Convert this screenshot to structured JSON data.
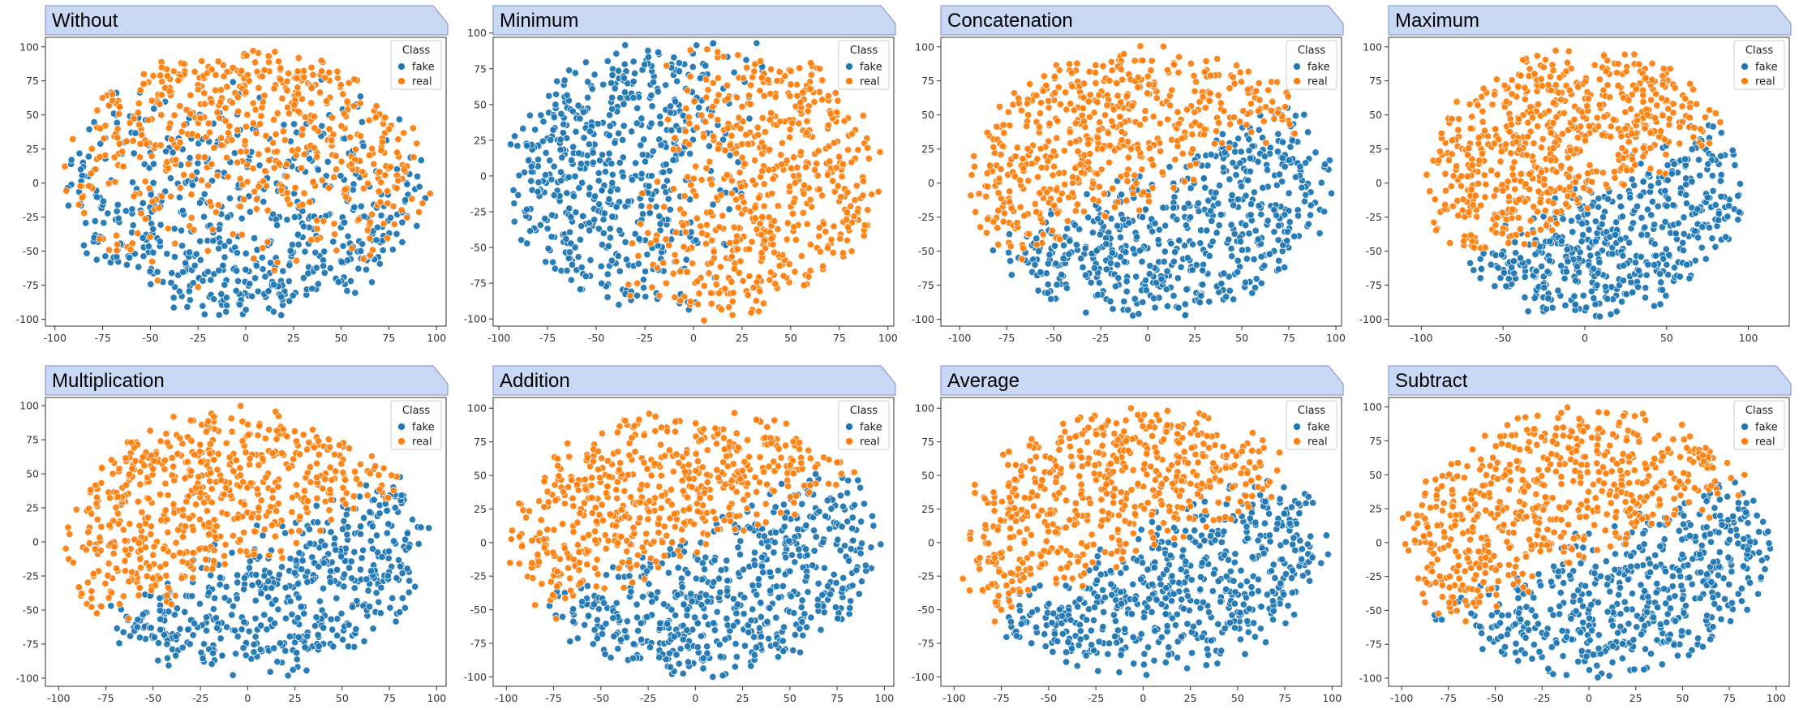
{
  "colors": {
    "fake": "#1f77b4",
    "real": "#ff7f0e",
    "banner": "#c9d9f5",
    "banner_stroke": "#7b8ec0"
  },
  "legend": {
    "title": "Class",
    "entries": [
      "fake",
      "real"
    ]
  },
  "chart_data": [
    {
      "type": "scatter",
      "title": "Without",
      "xlim": [
        -105,
        105
      ],
      "ylim": [
        -105,
        107
      ],
      "xticks": [
        -100,
        -75,
        -50,
        -25,
        0,
        25,
        50,
        75,
        100
      ],
      "yticks": [
        -100,
        -75,
        -50,
        -25,
        0,
        25,
        50,
        75,
        100
      ],
      "legend": "top-right",
      "grid": false,
      "points_per_class": 560,
      "series": [
        {
          "name": "fake",
          "distribution": "mixed throughout, denser in lower half",
          "spread": [
            -95,
            95,
            -88,
            55
          ]
        },
        {
          "name": "real",
          "distribution": "mixed throughout, denser in upper half",
          "spread": [
            -98,
            98,
            -92,
            100
          ]
        }
      ]
    },
    {
      "type": "scatter",
      "title": "Minimum",
      "xlim": [
        -103,
        103
      ],
      "ylim": [
        -105,
        97
      ],
      "xticks": [
        -100,
        -75,
        -50,
        -25,
        0,
        25,
        50,
        75,
        100
      ],
      "yticks": [
        -100,
        -75,
        -50,
        -25,
        0,
        25,
        50,
        75,
        100
      ],
      "legend": "top-right",
      "grid": false,
      "points_per_class": 560,
      "series": [
        {
          "name": "fake",
          "distribution": "left half, overlapping",
          "spread": [
            -92,
            40,
            -92,
            75
          ]
        },
        {
          "name": "real",
          "distribution": "right half, overlapping",
          "spread": [
            -40,
            95,
            -92,
            92
          ]
        }
      ]
    },
    {
      "type": "scatter",
      "title": "Concatenation",
      "xlim": [
        -110,
        103
      ],
      "ylim": [
        -105,
        107
      ],
      "xticks": [
        -100,
        -75,
        -50,
        -25,
        0,
        25,
        50,
        75,
        100
      ],
      "yticks": [
        -100,
        -75,
        -50,
        -25,
        0,
        25,
        50,
        75,
        100
      ],
      "legend": "top-right",
      "grid": false,
      "points_per_class": 560,
      "series": [
        {
          "name": "fake",
          "distribution": "left and lower region",
          "spread": [
            -100,
            90,
            -100,
            55
          ]
        },
        {
          "name": "real",
          "distribution": "upper-right region",
          "spread": [
            -50,
            98,
            -60,
            100
          ]
        }
      ]
    },
    {
      "type": "scatter",
      "title": "Maximum",
      "xlim": [
        -120,
        125
      ],
      "ylim": [
        -105,
        107
      ],
      "xticks": [
        -100,
        -50,
        0,
        50,
        100
      ],
      "yticks": [
        -100,
        -75,
        -50,
        -25,
        0,
        25,
        50,
        75,
        100
      ],
      "legend": "top-right",
      "grid": false,
      "points_per_class": 560,
      "series": [
        {
          "name": "fake",
          "distribution": "left and lower region",
          "spread": [
            -100,
            80,
            -97,
            65
          ]
        },
        {
          "name": "real",
          "distribution": "upper-right region",
          "spread": [
            -40,
            110,
            -90,
            100
          ]
        }
      ]
    },
    {
      "type": "scatter",
      "title": "Multiplication",
      "xlim": [
        -107,
        105
      ],
      "ylim": [
        -106,
        106
      ],
      "xticks": [
        -100,
        -75,
        -50,
        -25,
        0,
        25,
        50,
        75,
        100
      ],
      "yticks": [
        -100,
        -75,
        -50,
        -25,
        0,
        25,
        50,
        75,
        100
      ],
      "legend": "top-right",
      "grid": false,
      "points_per_class": 560,
      "series": [
        {
          "name": "fake",
          "distribution": "left and lower region",
          "spread": [
            -100,
            95,
            -97,
            45
          ]
        },
        {
          "name": "real",
          "distribution": "upper-right region",
          "spread": [
            -60,
            98,
            -60,
            100
          ]
        }
      ]
    },
    {
      "type": "scatter",
      "title": "Addition",
      "xlim": [
        -107,
        105
      ],
      "ylim": [
        -107,
        108
      ],
      "xticks": [
        -100,
        -75,
        -50,
        -25,
        0,
        25,
        50,
        75,
        100
      ],
      "yticks": [
        -100,
        -75,
        -50,
        -25,
        0,
        25,
        50,
        75,
        100
      ],
      "legend": "top-right",
      "grid": false,
      "points_per_class": 560,
      "series": [
        {
          "name": "fake",
          "distribution": "left and lower region",
          "spread": [
            -100,
            95,
            -97,
            55
          ]
        },
        {
          "name": "real",
          "distribution": "upper-right region",
          "spread": [
            -50,
            100,
            -85,
            100
          ]
        }
      ]
    },
    {
      "type": "scatter",
      "title": "Average",
      "xlim": [
        -107,
        105
      ],
      "ylim": [
        -107,
        108
      ],
      "xticks": [
        -100,
        -75,
        -50,
        -25,
        0,
        25,
        50,
        75,
        100
      ],
      "yticks": [
        -100,
        -75,
        -50,
        -25,
        0,
        25,
        50,
        75,
        100
      ],
      "legend": "top-right",
      "grid": false,
      "points_per_class": 560,
      "series": [
        {
          "name": "fake",
          "distribution": "left and lower region",
          "spread": [
            -100,
            95,
            -97,
            55
          ]
        },
        {
          "name": "real",
          "distribution": "upper-right region",
          "spread": [
            -50,
            100,
            -85,
            100
          ]
        }
      ]
    },
    {
      "type": "scatter",
      "title": "Subtract",
      "xlim": [
        -107,
        107
      ],
      "ylim": [
        -106,
        107
      ],
      "xticks": [
        -100,
        -75,
        -50,
        -25,
        0,
        25,
        50,
        75,
        100
      ],
      "yticks": [
        -100,
        -75,
        -50,
        -25,
        0,
        25,
        50,
        75,
        100
      ],
      "legend": "top-right",
      "grid": false,
      "points_per_class": 560,
      "series": [
        {
          "name": "fake",
          "distribution": "left and lower region",
          "spread": [
            -100,
            95,
            -97,
            70
          ]
        },
        {
          "name": "real",
          "distribution": "upper-right region",
          "spread": [
            -50,
            100,
            -92,
            100
          ]
        }
      ]
    }
  ]
}
